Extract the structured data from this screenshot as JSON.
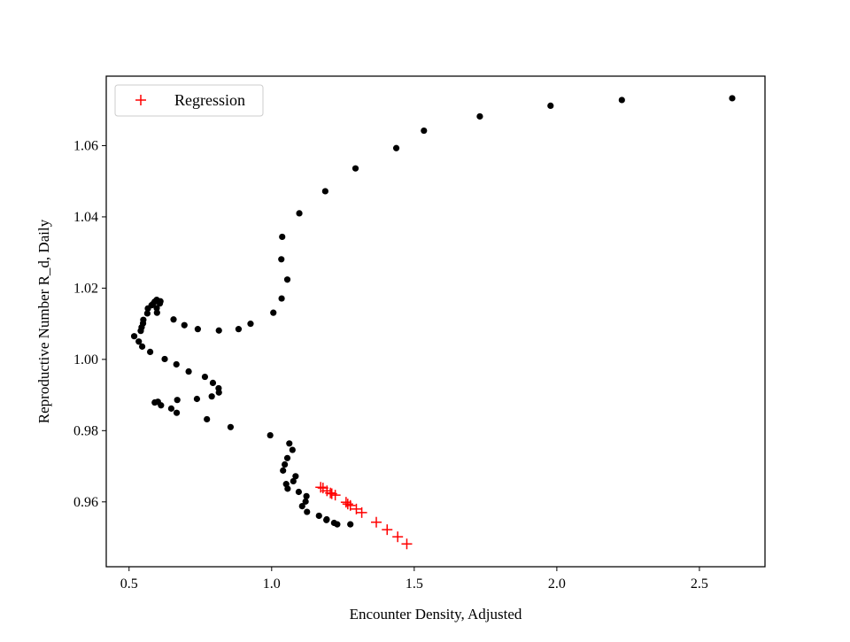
{
  "chart_data": {
    "type": "scatter",
    "title": "",
    "xlabel": "Encounter Density, Adjusted",
    "ylabel": "Reproductive Number R_d, Daily",
    "xlim": [
      0.42,
      2.73
    ],
    "ylim": [
      0.9418,
      1.0795
    ],
    "xticks": [
      0.5,
      1.0,
      1.5,
      2.0,
      2.5
    ],
    "xtick_labels": [
      "0.5",
      "1.0",
      "1.5",
      "2.0",
      "2.5"
    ],
    "yticks": [
      0.96,
      0.98,
      1.0,
      1.02,
      1.04,
      1.06
    ],
    "ytick_labels": [
      "0.96",
      "0.98",
      "1.00",
      "1.02",
      "1.04",
      "1.06"
    ],
    "grid": false,
    "legend_position": "upper-left",
    "legend": [
      "Regression"
    ],
    "series": [
      {
        "marker": "circle",
        "color": "#000000",
        "points": [
          [
            2.615,
            1.0733
          ],
          [
            2.228,
            1.0728
          ],
          [
            1.978,
            1.0712
          ],
          [
            1.73,
            1.0682
          ],
          [
            1.534,
            1.0642
          ],
          [
            1.437,
            1.0593
          ],
          [
            1.294,
            1.0536
          ],
          [
            1.188,
            1.0472
          ],
          [
            1.097,
            1.041
          ],
          [
            1.037,
            1.0344
          ],
          [
            1.034,
            1.0281
          ],
          [
            1.055,
            1.0224
          ],
          [
            1.035,
            1.0171
          ],
          [
            1.006,
            1.0131
          ],
          [
            0.926,
            1.01
          ],
          [
            0.884,
            1.0085
          ],
          [
            0.815,
            1.0081
          ],
          [
            0.741,
            1.0085
          ],
          [
            0.694,
            1.0096
          ],
          [
            0.656,
            1.0112
          ],
          [
            0.61,
            1.0163
          ],
          [
            0.608,
            1.0157
          ],
          [
            0.597,
            1.0167
          ],
          [
            0.59,
            1.0162
          ],
          [
            0.583,
            1.0155
          ],
          [
            0.579,
            1.0152
          ],
          [
            0.597,
            1.0144
          ],
          [
            0.598,
            1.0131
          ],
          [
            0.566,
            1.0143
          ],
          [
            0.564,
            1.0129
          ],
          [
            0.55,
            1.0111
          ],
          [
            0.549,
            1.0101
          ],
          [
            0.544,
            1.009
          ],
          [
            0.541,
            1.008
          ],
          [
            0.518,
            1.0065
          ],
          [
            0.534,
            1.005
          ],
          [
            0.546,
            1.0036
          ],
          [
            0.574,
            1.0021
          ],
          [
            0.625,
            1.0001
          ],
          [
            0.666,
            0.9986
          ],
          [
            0.709,
            0.9966
          ],
          [
            0.766,
            0.9951
          ],
          [
            0.794,
            0.9934
          ],
          [
            0.814,
            0.9919
          ],
          [
            0.815,
            0.9907
          ],
          [
            0.79,
            0.9896
          ],
          [
            0.738,
            0.9889
          ],
          [
            0.669,
            0.9886
          ],
          [
            0.59,
            0.9879
          ],
          [
            0.601,
            0.9881
          ],
          [
            0.612,
            0.9871
          ],
          [
            0.648,
            0.9862
          ],
          [
            0.667,
            0.985
          ],
          [
            0.773,
            0.9832
          ],
          [
            0.856,
            0.981
          ],
          [
            0.995,
            0.9787
          ],
          [
            1.062,
            0.9764
          ],
          [
            1.073,
            0.9746
          ],
          [
            1.055,
            0.9723
          ],
          [
            1.046,
            0.9705
          ],
          [
            1.04,
            0.9688
          ],
          [
            1.084,
            0.9672
          ],
          [
            1.076,
            0.9658
          ],
          [
            1.051,
            0.965
          ],
          [
            1.056,
            0.9637
          ],
          [
            1.095,
            0.9628
          ],
          [
            1.122,
            0.9616
          ],
          [
            1.119,
            0.9601
          ],
          [
            1.107,
            0.9588
          ],
          [
            1.124,
            0.9572
          ],
          [
            1.166,
            0.9561
          ],
          [
            1.192,
            0.9549
          ],
          [
            1.193,
            0.9551
          ],
          [
            1.219,
            0.9541
          ],
          [
            1.23,
            0.9537
          ],
          [
            1.276,
            0.9537
          ]
        ]
      },
      {
        "name": "Regression",
        "marker": "plus",
        "color": "#ff0000",
        "points": [
          [
            1.474,
            0.9482
          ],
          [
            1.442,
            0.9502
          ],
          [
            1.405,
            0.9522
          ],
          [
            1.367,
            0.9543
          ],
          [
            1.316,
            0.957
          ],
          [
            1.297,
            0.958
          ],
          [
            1.276,
            0.959
          ],
          [
            1.267,
            0.9594
          ],
          [
            1.261,
            0.9599
          ],
          [
            1.223,
            0.9619
          ],
          [
            1.211,
            0.9623
          ],
          [
            1.206,
            0.9625
          ],
          [
            1.194,
            0.9631
          ],
          [
            1.18,
            0.9639
          ],
          [
            1.172,
            0.9641
          ]
        ]
      }
    ]
  }
}
